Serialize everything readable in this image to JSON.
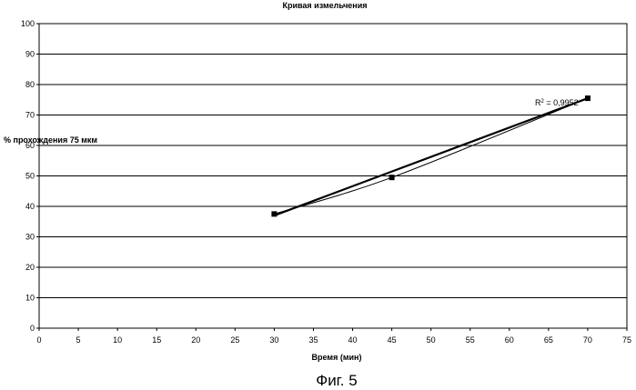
{
  "caption": "Фиг. 5",
  "chart_data": {
    "type": "scatter",
    "title": "Кривая измельчения",
    "xlabel": "Время (мин)",
    "ylabel": "% прохождения 75 мкм",
    "xlim": [
      0,
      75
    ],
    "ylim": [
      0,
      100
    ],
    "xticks": [
      "0",
      "5",
      "10",
      "15",
      "20",
      "25",
      "30",
      "35",
      "40",
      "45",
      "50",
      "55",
      "60",
      "65",
      "70",
      "75"
    ],
    "yticks": [
      "0",
      "10",
      "20",
      "30",
      "40",
      "50",
      "60",
      "70",
      "80",
      "90",
      "100"
    ],
    "grid": "horizontal",
    "series": [
      {
        "points": [
          {
            "x": 30,
            "y": 37.5
          },
          {
            "x": 45,
            "y": 49.5
          },
          {
            "x": 70,
            "y": 75.5
          }
        ],
        "marker": "square",
        "connected_by_smooth_line": true
      }
    ],
    "trendline": {
      "type": "linear",
      "from": {
        "x": 30,
        "y": 37
      },
      "to": {
        "x": 70,
        "y": 75.5
      },
      "r2_label": "R² = 0,9952"
    }
  }
}
